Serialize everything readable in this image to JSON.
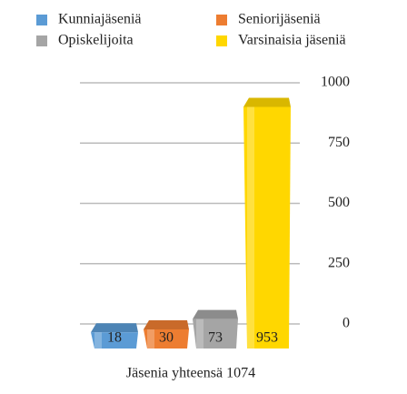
{
  "chart_data": {
    "type": "bar",
    "categories": [
      "Kunniajäseniä",
      "Seniorijäseniä",
      "Opiskelijoita",
      "Varsinaisia jäseniä"
    ],
    "values": [
      18,
      30,
      73,
      953
    ],
    "colors": [
      "#5b9bd5",
      "#ed7d31",
      "#a5a5a5",
      "#ffd700"
    ],
    "ylim": [
      0,
      1000
    ],
    "yticks": [
      0,
      250,
      500,
      750,
      1000
    ],
    "grid": true,
    "legend": "top",
    "caption": "Jäsenia yhteensä 1074"
  }
}
